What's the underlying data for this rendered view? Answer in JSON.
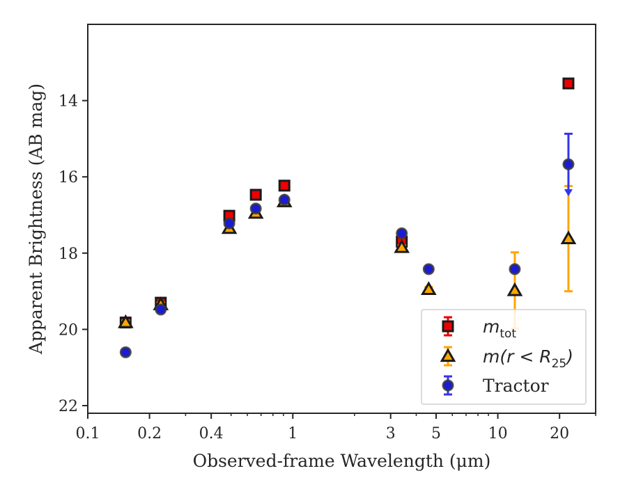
{
  "chart_data": {
    "type": "scatter",
    "x_scale": "log",
    "y_inverted": true,
    "xlabel": "Observed-frame Wavelength (μm)",
    "ylabel": "Apparent Brightness (AB mag)",
    "xlim": [
      0.1,
      30
    ],
    "ylim": [
      22.2,
      12.0
    ],
    "x_ticks": [
      {
        "value": 0.1,
        "label": "0.1"
      },
      {
        "value": 0.2,
        "label": "0.2"
      },
      {
        "value": 0.4,
        "label": "0.4"
      },
      {
        "value": 1,
        "label": "1"
      },
      {
        "value": 3,
        "label": "3"
      },
      {
        "value": 5,
        "label": "5"
      },
      {
        "value": 10,
        "label": "10"
      },
      {
        "value": 20,
        "label": "20"
      }
    ],
    "y_ticks": [
      {
        "value": 14,
        "label": "14"
      },
      {
        "value": 16,
        "label": "16"
      },
      {
        "value": 18,
        "label": "18"
      },
      {
        "value": 20,
        "label": "20"
      },
      {
        "value": 22,
        "label": "22"
      }
    ],
    "grid": false,
    "legend_position": "bottom-right",
    "series": [
      {
        "key": "mtot",
        "legend_main": "m",
        "legend_sub": "tot",
        "marker": "square",
        "color": "#ee0000",
        "edge_color": "#1a1a1a",
        "error_color": "#ee0000",
        "points": [
          {
            "x": 0.153,
            "y": 19.82,
            "err": 0.08
          },
          {
            "x": 0.227,
            "y": 19.3,
            "err": 0.08
          },
          {
            "x": 0.49,
            "y": 17.02,
            "err": 0.05
          },
          {
            "x": 0.66,
            "y": 16.47,
            "err": 0.05
          },
          {
            "x": 0.91,
            "y": 16.23,
            "err": 0.05
          },
          {
            "x": 3.4,
            "y": 17.7,
            "err": 0.05
          },
          {
            "x": 22.1,
            "y": 13.55,
            "err": 0.05
          }
        ]
      },
      {
        "key": "m_r25",
        "legend_main": "m(r < R",
        "legend_sub": "25",
        "legend_close": ")",
        "marker": "triangle",
        "color": "#ffa500",
        "edge_color": "#1a1a1a",
        "error_color": "#ffa500",
        "points": [
          {
            "x": 0.153,
            "y": 19.82,
            "err": 0.05
          },
          {
            "x": 0.227,
            "y": 19.35,
            "err": 0.05
          },
          {
            "x": 0.49,
            "y": 17.35,
            "err": 0.05
          },
          {
            "x": 0.66,
            "y": 16.95,
            "err": 0.05
          },
          {
            "x": 0.91,
            "y": 16.65,
            "err": 0.05
          },
          {
            "x": 3.4,
            "y": 17.85,
            "err": 0.05
          },
          {
            "x": 4.6,
            "y": 18.95,
            "err": 0.06
          },
          {
            "x": 12.1,
            "y": 18.98,
            "err": 1.0
          },
          {
            "x": 22.1,
            "y": 17.62,
            "err": 1.38
          }
        ]
      },
      {
        "key": "tractor",
        "legend_main": "Tractor",
        "marker": "circle",
        "color": "#1a1ad9",
        "edge_color": "#3a3a3a",
        "error_color": "#3333ee",
        "points": [
          {
            "x": 0.153,
            "y": 20.6,
            "err": 0.05
          },
          {
            "x": 0.227,
            "y": 19.48,
            "err": 0.05
          },
          {
            "x": 0.49,
            "y": 17.22,
            "err": 0.05
          },
          {
            "x": 0.66,
            "y": 16.83,
            "err": 0.05
          },
          {
            "x": 0.91,
            "y": 16.6,
            "err": 0.05
          },
          {
            "x": 3.4,
            "y": 17.48,
            "err": 0.06
          },
          {
            "x": 4.6,
            "y": 18.42,
            "err": 0.05
          },
          {
            "x": 12.1,
            "y": 18.42,
            "err": 0.05
          },
          {
            "x": 22.1,
            "y": 15.67,
            "err": 0.8,
            "err_arrow": true
          }
        ]
      }
    ]
  }
}
